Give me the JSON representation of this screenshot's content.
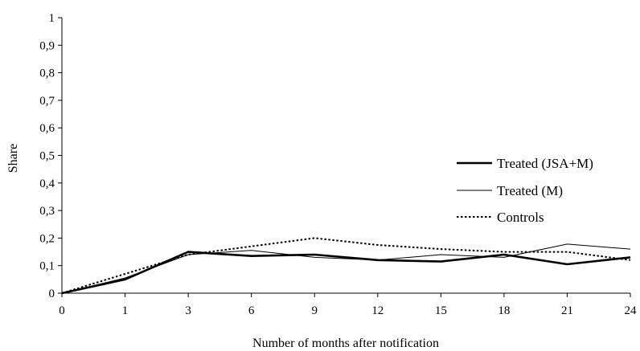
{
  "chart_data": {
    "type": "line",
    "title": "",
    "xlabel": "Number of months after notification",
    "ylabel": "Share",
    "categories": [
      "0",
      "1",
      "3",
      "6",
      "9",
      "12",
      "15",
      "18",
      "21",
      "24"
    ],
    "x_tick_labels": [
      "0",
      "1",
      "3",
      "6",
      "9",
      "12",
      "15",
      "18",
      "21",
      "24"
    ],
    "y_tick_labels": [
      "0",
      "0,1",
      "0,2",
      "0,3",
      "0,4",
      "0,5",
      "0,6",
      "0,7",
      "0,8",
      "0,9",
      "1"
    ],
    "ylim": [
      0,
      1
    ],
    "y_ticks": [
      0,
      0.1,
      0.2,
      0.3,
      0.4,
      0.5,
      0.6,
      0.7,
      0.8,
      0.9,
      1.0
    ],
    "grid": false,
    "legend_position": "right",
    "series": [
      {
        "name": "Treated (JSA+M)",
        "values": [
          0,
          0.05,
          0.15,
          0.135,
          0.14,
          0.12,
          0.115,
          0.14,
          0.105,
          0.13
        ],
        "color": "#000000",
        "style": "solid-thick"
      },
      {
        "name": "Treated (M)",
        "values": [
          0,
          0.055,
          0.14,
          0.155,
          0.13,
          0.12,
          0.14,
          0.13,
          0.178,
          0.16
        ],
        "color": "#000000",
        "style": "solid-thin"
      },
      {
        "name": "Controls",
        "values": [
          0,
          0.07,
          0.14,
          0.17,
          0.2,
          0.175,
          0.16,
          0.15,
          0.15,
          0.12
        ],
        "color": "#000000",
        "style": "dotted"
      }
    ]
  }
}
